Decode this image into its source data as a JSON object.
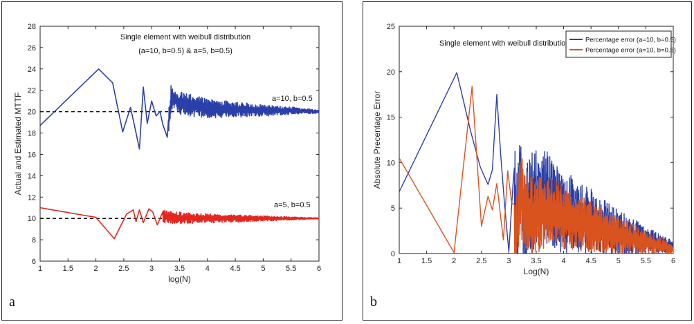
{
  "panels": [
    {
      "letter": "a"
    },
    {
      "letter": "b"
    }
  ],
  "colors": {
    "blue": "#2b3fa8",
    "red": "#e3261f",
    "orange": "#d9531e",
    "dashed": "#111111"
  },
  "chart_data": [
    {
      "type": "line",
      "title": "Single element with weibull distribution",
      "subtitle": "(a=10, b=0.5) & a=5, b=0.5)",
      "xlabel": "log(N)",
      "ylabel": "Actual and Estimated MTTF",
      "xlim": [
        1,
        6
      ],
      "ylim": [
        6,
        28
      ],
      "xticks": [
        1,
        1.5,
        2,
        2.5,
        3,
        3.5,
        4,
        4.5,
        5,
        5.5,
        6
      ],
      "yticks": [
        6,
        8,
        10,
        12,
        14,
        16,
        18,
        20,
        22,
        24,
        26,
        28
      ],
      "legend": "none",
      "grid": false,
      "annotations": [
        "a=10, b=0.5",
        "a=5, b=0.5"
      ],
      "reference_lines": [
        20,
        10
      ],
      "series": [
        {
          "color": "blue",
          "x": [
            1.0,
            2.05,
            2.3,
            2.48,
            2.62,
            2.7,
            2.78,
            2.85,
            2.92,
            3.0,
            3.08,
            3.15,
            3.2,
            3.28,
            3.35,
            3.5,
            3.75,
            4.0,
            4.5,
            5.0,
            5.5,
            6.0
          ],
          "y": [
            18.7,
            24.0,
            22.7,
            18.1,
            20.4,
            18.5,
            16.5,
            22.3,
            18.9,
            21.0,
            19.6,
            20.0,
            18.8,
            17.6,
            21.4,
            20.8,
            20.5,
            20.3,
            20.2,
            20.1,
            20.1,
            20.0
          ],
          "noise_from": 3.3,
          "noise_amp_start": 1.2,
          "noise_amp_end": 0.15
        },
        {
          "color": "red",
          "x": [
            1.0,
            2.0,
            2.33,
            2.55,
            2.67,
            2.72,
            2.78,
            2.85,
            2.95,
            3.02,
            3.1,
            3.2,
            3.4,
            3.7,
            4.0,
            4.5,
            5.0,
            6.0
          ],
          "y": [
            11.0,
            10.1,
            8.1,
            10.4,
            10.8,
            9.7,
            10.8,
            9.6,
            10.9,
            10.6,
            9.4,
            10.2,
            10.1,
            10.0,
            10.0,
            10.0,
            10.0,
            10.0
          ],
          "noise_from": 3.2,
          "noise_amp_start": 0.6,
          "noise_amp_end": 0.05
        }
      ]
    },
    {
      "type": "line",
      "title": "Single element with weibull distribution",
      "xlabel": "Log(N)",
      "ylabel": "Absolute Precentage Error",
      "xlim": [
        1,
        6
      ],
      "ylim": [
        0,
        25
      ],
      "xticks": [
        1,
        1.5,
        2,
        2.5,
        3,
        3.5,
        4,
        4.5,
        5,
        5.5,
        6
      ],
      "yticks": [
        0,
        5,
        10,
        15,
        20,
        25
      ],
      "legend": "top-right",
      "grid": false,
      "series": [
        {
          "name": "Percentage error (a=10, b=0.5)",
          "color": "blue",
          "x": [
            1.0,
            2.05,
            2.3,
            2.48,
            2.62,
            2.7,
            2.78,
            2.85,
            2.92,
            3.0,
            3.08,
            3.15,
            3.2,
            3.28,
            3.4,
            3.7,
            4.0,
            4.5,
            5.0,
            5.5,
            6.0
          ],
          "y": [
            6.8,
            19.9,
            13.5,
            9.5,
            7.6,
            9.2,
            17.5,
            11.0,
            5.5,
            0.2,
            8.0,
            2.5,
            9.5,
            3.0,
            5.5,
            6.0,
            4.5,
            3.5,
            2.2,
            1.4,
            0.8
          ],
          "noise_from": 3.1,
          "noise_amp_start": 6.5,
          "noise_amp_end": 0.6
        },
        {
          "name": "Percentage error (a=10, b=0.5)",
          "color": "orange",
          "x": [
            1.0,
            2.0,
            2.33,
            2.5,
            2.62,
            2.7,
            2.78,
            2.9,
            2.98,
            3.05,
            3.12,
            3.2,
            3.4,
            3.7,
            4.0,
            4.5,
            5.0,
            5.5,
            6.0
          ],
          "y": [
            10.5,
            0.1,
            18.4,
            3.0,
            6.3,
            4.8,
            7.7,
            1.5,
            9.1,
            5.6,
            0.4,
            6.5,
            4.0,
            4.5,
            4.0,
            3.0,
            2.0,
            1.2,
            0.5
          ],
          "noise_from": 3.1,
          "noise_amp_start": 5.0,
          "noise_amp_end": 0.5
        }
      ]
    }
  ]
}
